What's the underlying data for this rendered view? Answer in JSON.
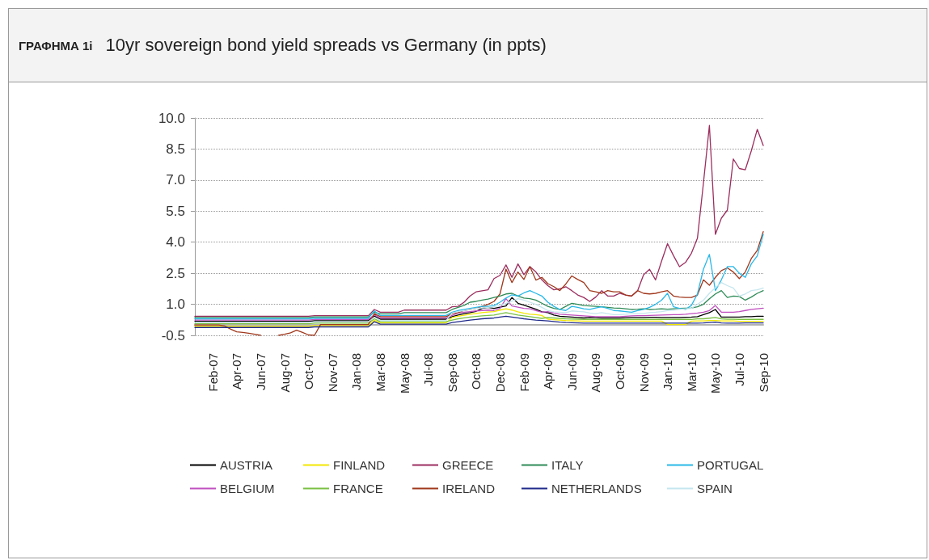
{
  "chart_data": {
    "type": "line",
    "title": "ΓΡΑΦΗΜΑ 1i",
    "subtitle": "10yr sovereign bond yield spreads vs Germany (in ppts)",
    "categories": [
      null,
      null,
      null,
      "Feb-07",
      null,
      null,
      null,
      "Apr-07",
      null,
      null,
      null,
      "Jun-07",
      null,
      null,
      null,
      "Aug-07",
      null,
      null,
      null,
      "Oct-07",
      null,
      null,
      null,
      "Nov-07",
      null,
      null,
      null,
      "Jan-08",
      null,
      null,
      null,
      "Mar-08",
      null,
      null,
      null,
      "May-08",
      null,
      null,
      null,
      "Jul-08",
      null,
      null,
      null,
      "Sep-08",
      null,
      null,
      null,
      "Oct-08",
      null,
      null,
      null,
      "Dec-08",
      null,
      null,
      null,
      "Feb-09",
      null,
      null,
      null,
      "Apr-09",
      null,
      null,
      null,
      "Jun-09",
      null,
      null,
      null,
      "Aug-09",
      null,
      null,
      null,
      "Oct-09",
      null,
      null,
      null,
      "Nov-09",
      null,
      null,
      null,
      "Jan-10",
      null,
      null,
      null,
      "Mar-10",
      null,
      null,
      null,
      "May-10",
      null,
      null,
      null,
      "Jul-10",
      null,
      null,
      null,
      "Sep-10"
    ],
    "ylim": [
      -0.5,
      10
    ],
    "yticks": [
      -0.5,
      {
        "value": 1,
        "label": "1.0"
      },
      2.5,
      {
        "value": 4,
        "label": "4.0"
      },
      5.5,
      {
        "value": 7,
        "label": "7.0"
      },
      8.5,
      {
        "value": 10,
        "label": "10.0"
      }
    ],
    "grid": "y",
    "legend": "bottom",
    "marker": "none",
    "line_style": "solid",
    "series": [
      {
        "name": "AUSTRIA",
        "color": "#000000",
        "values": [
          0.18,
          0.18,
          0.18,
          0.18,
          0.18,
          0.18,
          0.18,
          0.18,
          0.18,
          0.18,
          0.18,
          0.18,
          0.18,
          0.18,
          0.18,
          0.18,
          0.18,
          0.18,
          0.18,
          0.18,
          0.21,
          0.21,
          0.21,
          0.21,
          0.21,
          0.21,
          0.21,
          0.21,
          0.21,
          0.21,
          0.43,
          0.28,
          0.28,
          0.28,
          0.28,
          0.28,
          0.28,
          0.28,
          0.28,
          0.28,
          0.28,
          0.28,
          0.28,
          0.4,
          0.48,
          0.55,
          0.6,
          0.66,
          0.8,
          0.85,
          0.8,
          0.86,
          0.92,
          1.33,
          1.05,
          0.96,
          0.86,
          0.76,
          0.64,
          0.6,
          0.48,
          0.42,
          0.4,
          0.38,
          0.36,
          0.34,
          0.36,
          0.35,
          0.34,
          0.34,
          0.34,
          0.34,
          0.35,
          0.36,
          0.36,
          0.36,
          0.37,
          0.37,
          0.36,
          0.36,
          0.36,
          0.36,
          0.37,
          0.38,
          0.4,
          0.5,
          0.6,
          0.75,
          0.38,
          0.38,
          0.38,
          0.38,
          0.4,
          0.4,
          0.42,
          0.42
        ]
      },
      {
        "name": "BELGIUM",
        "color": "#c04fbf",
        "values": [
          0.24,
          0.24,
          0.24,
          0.24,
          0.24,
          0.24,
          0.24,
          0.24,
          0.24,
          0.24,
          0.24,
          0.24,
          0.24,
          0.24,
          0.24,
          0.24,
          0.24,
          0.24,
          0.24,
          0.24,
          0.27,
          0.27,
          0.27,
          0.27,
          0.27,
          0.27,
          0.27,
          0.27,
          0.27,
          0.27,
          0.49,
          0.34,
          0.34,
          0.34,
          0.34,
          0.34,
          0.34,
          0.34,
          0.34,
          0.34,
          0.34,
          0.34,
          0.34,
          0.46,
          0.58,
          0.62,
          0.65,
          0.68,
          0.7,
          0.72,
          0.7,
          0.8,
          1.27,
          0.92,
          0.86,
          0.8,
          0.78,
          0.7,
          0.62,
          0.65,
          0.58,
          0.52,
          0.5,
          0.48,
          0.46,
          0.44,
          0.42,
          0.4,
          0.4,
          0.4,
          0.4,
          0.4,
          0.42,
          0.44,
          0.45,
          0.45,
          0.46,
          0.47,
          0.48,
          0.49,
          0.5,
          0.5,
          0.52,
          0.55,
          0.58,
          0.62,
          0.7,
          0.94,
          0.62,
          0.62,
          0.62,
          0.65,
          0.7,
          0.75,
          0.78,
          0.81
        ]
      },
      {
        "name": "FINLAND",
        "color": "#f2e600",
        "values": [
          -0.06,
          -0.06,
          -0.06,
          -0.06,
          -0.06,
          -0.06,
          -0.06,
          -0.06,
          -0.06,
          -0.06,
          -0.06,
          -0.06,
          -0.06,
          -0.06,
          -0.06,
          -0.06,
          -0.06,
          -0.06,
          -0.06,
          -0.06,
          -0.03,
          -0.03,
          -0.03,
          -0.03,
          -0.03,
          -0.03,
          -0.03,
          -0.03,
          -0.03,
          -0.03,
          0.23,
          0.1,
          0.1,
          0.1,
          0.1,
          0.1,
          0.1,
          0.1,
          0.1,
          0.1,
          0.1,
          0.1,
          0.1,
          0.36,
          0.42,
          0.47,
          0.52,
          0.56,
          0.6,
          0.63,
          0.65,
          0.72,
          0.78,
          0.72,
          0.64,
          0.57,
          0.52,
          0.5,
          0.46,
          0.28,
          0.26,
          0.24,
          0.22,
          0.21,
          0.2,
          0.19,
          0.19,
          0.19,
          0.19,
          0.19,
          0.19,
          0.19,
          0.19,
          0.19,
          0.19,
          0.19,
          0.19,
          0.19,
          0.19,
          0.02,
          0.02,
          0.02,
          0.02,
          0.19,
          0.2,
          0.2,
          0.22,
          0.22,
          0.2,
          0.2,
          0.2,
          0.18,
          0.18,
          0.18,
          0.18,
          0.18
        ]
      },
      {
        "name": "FRANCE",
        "color": "#7ac143",
        "values": [
          0.06,
          0.06,
          0.06,
          0.06,
          0.06,
          0.06,
          0.06,
          0.06,
          0.06,
          0.06,
          0.06,
          0.06,
          0.06,
          0.06,
          0.06,
          0.06,
          0.06,
          0.06,
          0.06,
          0.06,
          0.09,
          0.09,
          0.09,
          0.09,
          0.09,
          0.09,
          0.09,
          0.09,
          0.09,
          0.09,
          0.3,
          0.16,
          0.16,
          0.16,
          0.16,
          0.16,
          0.16,
          0.16,
          0.16,
          0.16,
          0.16,
          0.16,
          0.16,
          0.24,
          0.3,
          0.34,
          0.38,
          0.41,
          0.44,
          0.46,
          0.48,
          0.54,
          0.6,
          0.54,
          0.48,
          0.44,
          0.4,
          0.36,
          0.32,
          0.36,
          0.34,
          0.32,
          0.3,
          0.29,
          0.28,
          0.27,
          0.27,
          0.27,
          0.27,
          0.27,
          0.27,
          0.27,
          0.27,
          0.27,
          0.27,
          0.27,
          0.27,
          0.27,
          0.27,
          0.27,
          0.27,
          0.27,
          0.27,
          0.27,
          0.3,
          0.3,
          0.33,
          0.36,
          0.3,
          0.28,
          0.28,
          0.27,
          0.27,
          0.27,
          0.27,
          0.27
        ]
      },
      {
        "name": "GREECE",
        "color": "#9b2d5e",
        "values": [
          0.42,
          0.42,
          0.42,
          0.42,
          0.42,
          0.42,
          0.42,
          0.42,
          0.42,
          0.42,
          0.42,
          0.42,
          0.42,
          0.42,
          0.42,
          0.42,
          0.42,
          0.42,
          0.42,
          0.42,
          0.45,
          0.45,
          0.45,
          0.45,
          0.45,
          0.45,
          0.45,
          0.45,
          0.45,
          0.45,
          0.75,
          0.62,
          0.62,
          0.62,
          0.62,
          0.72,
          0.72,
          0.72,
          0.72,
          0.72,
          0.72,
          0.72,
          0.72,
          0.88,
          0.9,
          1.1,
          1.4,
          1.6,
          1.65,
          1.7,
          2.24,
          2.4,
          2.9,
          2.3,
          2.95,
          2.43,
          2.82,
          2.56,
          2.18,
          1.9,
          1.7,
          1.75,
          1.85,
          1.66,
          1.45,
          1.33,
          1.14,
          1.35,
          1.66,
          1.4,
          1.4,
          1.53,
          1.45,
          1.4,
          1.66,
          2.43,
          2.69,
          2.18,
          3.08,
          3.93,
          3.35,
          2.82,
          3.02,
          3.47,
          4.19,
          6.85,
          9.64,
          4.38,
          5.16,
          5.55,
          8.02,
          7.56,
          7.5,
          8.41,
          9.45,
          8.67
        ]
      },
      {
        "name": "IRELAND",
        "color": "#a0381c",
        "values": [
          0.0,
          0.0,
          0.0,
          0.0,
          0.0,
          -0.05,
          -0.2,
          -0.33,
          -0.36,
          -0.4,
          -0.45,
          -0.5,
          null,
          null,
          -0.5,
          -0.45,
          -0.38,
          -0.25,
          -0.36,
          -0.48,
          -0.5,
          0.02,
          0.02,
          0.02,
          0.02,
          0.02,
          0.02,
          0.02,
          0.02,
          0.02,
          0.55,
          0.4,
          0.4,
          0.4,
          0.4,
          0.4,
          0.4,
          0.4,
          0.4,
          0.4,
          0.4,
          0.4,
          0.4,
          0.55,
          0.6,
          0.7,
          0.75,
          0.8,
          0.9,
          1.0,
          1.14,
          1.5,
          2.7,
          2.05,
          2.56,
          2.2,
          2.82,
          2.17,
          2.3,
          2.0,
          1.85,
          1.66,
          1.98,
          2.37,
          2.2,
          2.05,
          1.66,
          1.6,
          1.53,
          1.66,
          1.6,
          1.6,
          1.45,
          1.4,
          1.66,
          1.53,
          1.5,
          1.53,
          1.6,
          1.66,
          1.4,
          1.35,
          1.33,
          1.33,
          1.45,
          2.18,
          1.92,
          2.3,
          2.63,
          2.76,
          2.56,
          2.24,
          2.56,
          3.21,
          3.6,
          4.51
        ]
      },
      {
        "name": "ITALY",
        "color": "#2e8b57",
        "values": [
          0.36,
          0.36,
          0.36,
          0.36,
          0.36,
          0.36,
          0.36,
          0.36,
          0.36,
          0.36,
          0.36,
          0.36,
          0.36,
          0.36,
          0.36,
          0.36,
          0.36,
          0.36,
          0.36,
          0.36,
          0.39,
          0.39,
          0.39,
          0.39,
          0.39,
          0.39,
          0.39,
          0.39,
          0.39,
          0.39,
          0.62,
          0.54,
          0.54,
          0.54,
          0.54,
          0.6,
          0.6,
          0.6,
          0.6,
          0.6,
          0.6,
          0.6,
          0.6,
          0.75,
          0.85,
          0.95,
          1.1,
          1.14,
          1.2,
          1.25,
          1.33,
          1.4,
          1.5,
          1.53,
          1.4,
          1.3,
          1.27,
          1.2,
          1.05,
          0.9,
          0.8,
          0.75,
          0.9,
          1.05,
          1.0,
          0.94,
          0.92,
          0.9,
          0.88,
          0.85,
          0.82,
          0.81,
          0.78,
          0.75,
          0.76,
          0.78,
          0.75,
          0.76,
          0.78,
          0.76,
          0.78,
          0.8,
          0.81,
          0.82,
          0.88,
          1.0,
          1.27,
          1.5,
          1.66,
          1.33,
          1.4,
          1.38,
          1.2,
          1.35,
          1.53,
          1.66
        ]
      },
      {
        "name": "NETHERLANDS",
        "color": "#1f2a8a",
        "values": [
          -0.12,
          -0.12,
          -0.12,
          -0.12,
          -0.12,
          -0.12,
          -0.12,
          -0.12,
          -0.12,
          -0.12,
          -0.12,
          -0.12,
          -0.12,
          -0.12,
          -0.12,
          -0.12,
          -0.12,
          -0.12,
          -0.12,
          -0.12,
          -0.09,
          -0.09,
          -0.09,
          -0.09,
          -0.09,
          -0.09,
          -0.09,
          -0.09,
          -0.09,
          -0.09,
          0.16,
          0.04,
          0.04,
          0.04,
          0.04,
          0.04,
          0.04,
          0.04,
          0.04,
          0.04,
          0.04,
          0.04,
          0.04,
          0.12,
          0.16,
          0.2,
          0.24,
          0.27,
          0.3,
          0.32,
          0.34,
          0.38,
          0.42,
          0.38,
          0.34,
          0.3,
          0.27,
          0.24,
          0.22,
          0.2,
          0.17,
          0.14,
          0.12,
          0.11,
          0.1,
          0.09,
          0.09,
          0.09,
          0.09,
          0.09,
          0.09,
          0.09,
          0.09,
          0.09,
          0.09,
          0.09,
          0.09,
          0.09,
          0.09,
          0.09,
          0.09,
          0.09,
          0.09,
          0.09,
          0.09,
          0.1,
          0.12,
          0.14,
          0.1,
          0.09,
          0.09,
          0.09,
          0.1,
          0.1,
          0.1,
          0.1
        ]
      },
      {
        "name": "PORTUGAL",
        "color": "#29b8e8",
        "values": [
          0.3,
          0.3,
          0.3,
          0.3,
          0.3,
          0.3,
          0.3,
          0.3,
          0.3,
          0.3,
          0.3,
          0.3,
          0.3,
          0.3,
          0.3,
          0.3,
          0.3,
          0.3,
          0.3,
          0.3,
          0.33,
          0.33,
          0.33,
          0.33,
          0.33,
          0.33,
          0.33,
          0.33,
          0.33,
          0.33,
          0.68,
          0.46,
          0.46,
          0.46,
          0.46,
          0.46,
          0.46,
          0.46,
          0.46,
          0.46,
          0.46,
          0.46,
          0.46,
          0.62,
          0.7,
          0.75,
          0.8,
          0.85,
          0.9,
          0.9,
          0.94,
          1.1,
          1.3,
          1.46,
          1.4,
          1.55,
          1.66,
          1.53,
          1.4,
          1.1,
          0.9,
          0.75,
          0.7,
          0.9,
          0.85,
          0.78,
          0.75,
          0.82,
          0.88,
          0.8,
          0.7,
          0.68,
          0.65,
          0.62,
          0.7,
          0.75,
          0.85,
          1.0,
          1.2,
          1.53,
          0.88,
          0.8,
          0.75,
          0.95,
          1.5,
          2.69,
          3.41,
          1.66,
          2.18,
          2.82,
          2.82,
          2.5,
          2.3,
          2.95,
          3.34,
          4.38
        ]
      },
      {
        "name": "SPAIN",
        "color": "#c5e6ee",
        "values": [
          0.12,
          0.12,
          0.12,
          0.12,
          0.12,
          0.12,
          0.12,
          0.12,
          0.12,
          0.12,
          0.12,
          0.12,
          0.12,
          0.12,
          0.12,
          0.12,
          0.12,
          0.12,
          0.12,
          0.12,
          0.15,
          0.15,
          0.15,
          0.15,
          0.15,
          0.15,
          0.15,
          0.15,
          0.15,
          0.15,
          0.37,
          0.22,
          0.22,
          0.22,
          0.22,
          0.22,
          0.22,
          0.22,
          0.22,
          0.22,
          0.22,
          0.22,
          0.22,
          0.58,
          0.65,
          0.7,
          0.75,
          0.8,
          0.82,
          0.85,
          0.88,
          0.95,
          1.05,
          1.15,
          1.27,
          1.2,
          1.1,
          1.0,
          0.85,
          0.7,
          0.64,
          0.62,
          0.6,
          0.68,
          0.66,
          0.64,
          0.58,
          0.55,
          0.6,
          0.55,
          0.5,
          0.5,
          0.52,
          0.55,
          0.56,
          0.56,
          0.6,
          0.62,
          0.65,
          0.7,
          0.72,
          0.75,
          0.78,
          0.8,
          1.0,
          1.2,
          1.53,
          1.8,
          2.05,
          1.9,
          1.79,
          1.4,
          1.5,
          1.66,
          1.7,
          1.79
        ]
      }
    ]
  }
}
